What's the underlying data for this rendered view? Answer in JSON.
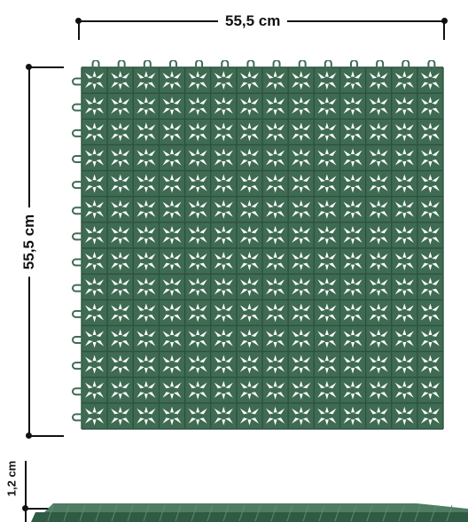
{
  "dimensions": {
    "width": "55,5 cm",
    "height": "55,5 cm",
    "thickness": "1,2 cm"
  },
  "colors": {
    "tile": "#3f6b53",
    "tile_dark": "#2d5240",
    "tile_light": "#5f8c72",
    "background": "#ffffff",
    "line": "#111111"
  },
  "tile": {
    "grid_cells": 14
  }
}
